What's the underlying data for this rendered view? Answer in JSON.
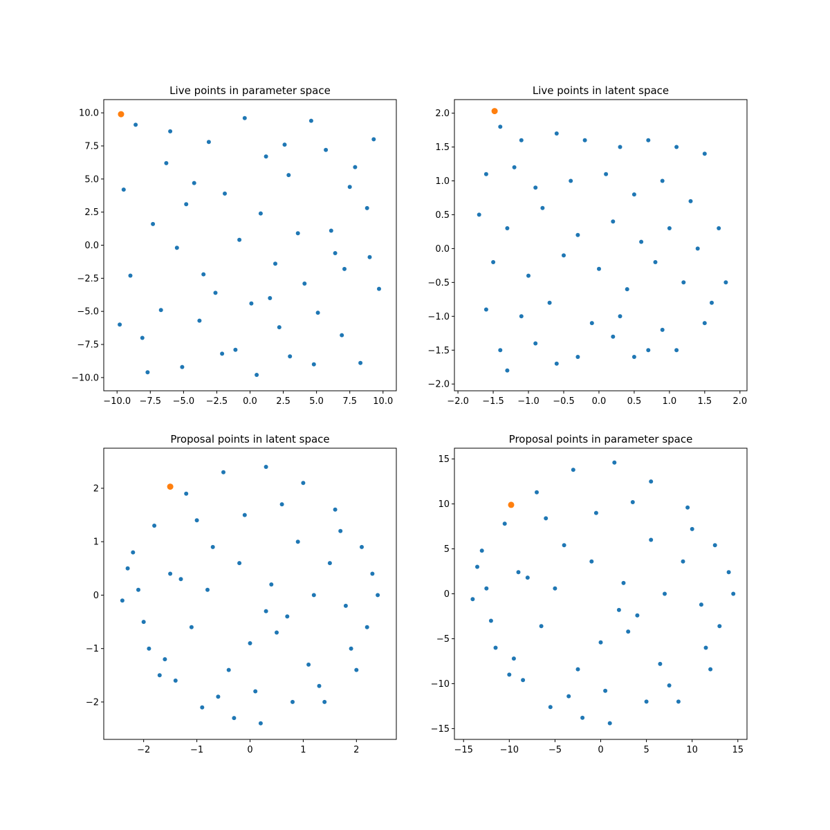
{
  "colors": {
    "series": "#1f77b4",
    "highlight": "#ff7f0e",
    "axes": "#000000",
    "background": "#ffffff"
  },
  "chart_data": [
    {
      "type": "scatter",
      "title": "Live points in parameter space",
      "xlabel": "",
      "ylabel": "",
      "xlim": [
        -11,
        11
      ],
      "ylim": [
        -11,
        11
      ],
      "xticks": [
        -10.0,
        -7.5,
        -5.0,
        -2.5,
        0.0,
        2.5,
        5.0,
        7.5,
        10.0
      ],
      "xtick_labels": [
        "−10.0",
        "−7.5",
        "−5.0",
        "−2.5",
        "0.0",
        "2.5",
        "5.0",
        "7.5",
        "10.0"
      ],
      "yticks": [
        -10.0,
        -7.5,
        -5.0,
        -2.5,
        0.0,
        2.5,
        5.0,
        7.5,
        10.0
      ],
      "ytick_labels": [
        "−10.0",
        "−7.5",
        "−5.0",
        "−2.5",
        "0.0",
        "2.5",
        "5.0",
        "7.5",
        "10.0"
      ],
      "grid": false,
      "legend": false,
      "series": [
        {
          "values_shape": "uniform square [-10,10] x [-10,10]",
          "x": [
            -8.6,
            -3.1,
            4.6,
            7.9,
            -6.0,
            1.2,
            -0.4,
            9.3,
            -9.5,
            2.9,
            5.7,
            -4.8,
            0.8,
            -7.3,
            3.6,
            8.8,
            -1.9,
            6.4,
            -5.5,
            1.9,
            -9.0,
            4.1,
            -2.6,
            7.1,
            0.1,
            -6.7,
            9.7,
            -3.8,
            2.2,
            5.1,
            -8.1,
            6.9,
            -1.1,
            3.0,
            -5.1,
            8.3,
            -7.7,
            0.5,
            4.8,
            -2.1,
            -9.8,
            1.5,
            6.1,
            -4.2,
            9.0,
            -0.8,
            2.6,
            -6.3,
            7.5,
            -3.5
          ],
          "y": [
            9.1,
            7.8,
            9.4,
            5.9,
            8.6,
            6.7,
            9.6,
            8.0,
            4.2,
            5.3,
            7.2,
            3.1,
            2.4,
            1.6,
            0.9,
            2.8,
            3.9,
            -0.6,
            -0.2,
            -1.4,
            -2.3,
            -2.9,
            -3.6,
            -1.8,
            -4.4,
            -4.9,
            -3.3,
            -5.7,
            -6.2,
            -5.1,
            -7.0,
            -6.8,
            -7.9,
            -8.4,
            -9.2,
            -8.9,
            -9.6,
            -9.8,
            -9.0,
            -8.2,
            -6.0,
            -4.0,
            1.1,
            4.7,
            -0.9,
            0.4,
            7.6,
            6.2,
            4.4,
            -2.2
          ],
          "color": "#1f77b4"
        },
        {
          "x": [
            -9.7
          ],
          "y": [
            9.9
          ],
          "color": "#ff7f0e"
        }
      ]
    },
    {
      "type": "scatter",
      "title": "Live points in latent space",
      "xlabel": "",
      "ylabel": "",
      "xlim": [
        -2.05,
        2.1
      ],
      "ylim": [
        -2.1,
        2.2
      ],
      "xticks": [
        -2.0,
        -1.5,
        -1.0,
        -0.5,
        0.0,
        0.5,
        1.0,
        1.5,
        2.0
      ],
      "xtick_labels": [
        "−2.0",
        "−1.5",
        "−1.0",
        "−0.5",
        "0.0",
        "0.5",
        "1.0",
        "1.5",
        "2.0"
      ],
      "yticks": [
        -2.0,
        -1.5,
        -1.0,
        -0.5,
        0.0,
        0.5,
        1.0,
        1.5,
        2.0
      ],
      "ytick_labels": [
        "−2.0",
        "−1.5",
        "−1.0",
        "−0.5",
        "0.0",
        "0.5",
        "1.0",
        "1.5",
        "2.0"
      ],
      "grid": false,
      "legend": false,
      "series": [
        {
          "x": [
            -1.4,
            -1.1,
            -0.6,
            -0.2,
            0.3,
            0.7,
            1.1,
            1.5,
            -1.6,
            -1.2,
            -0.9,
            -0.4,
            0.1,
            0.5,
            0.9,
            1.3,
            1.7,
            -1.7,
            -1.3,
            -0.8,
            -0.3,
            0.2,
            0.6,
            1.0,
            1.4,
            1.8,
            -1.5,
            -1.0,
            -0.5,
            0.0,
            0.4,
            0.8,
            1.2,
            1.6,
            -1.6,
            -1.1,
            -0.7,
            -0.1,
            0.3,
            0.9,
            1.5,
            -1.4,
            -0.9,
            -0.3,
            0.2,
            0.7,
            1.1,
            -1.3,
            -0.6,
            0.5
          ],
          "y": [
            1.8,
            1.6,
            1.7,
            1.6,
            1.5,
            1.6,
            1.5,
            1.4,
            1.1,
            1.2,
            0.9,
            1.0,
            1.1,
            0.8,
            1.0,
            0.7,
            0.3,
            0.5,
            0.3,
            0.6,
            0.2,
            0.4,
            0.1,
            0.3,
            0.0,
            -0.5,
            -0.2,
            -0.4,
            -0.1,
            -0.3,
            -0.6,
            -0.2,
            -0.5,
            -0.8,
            -0.9,
            -1.0,
            -0.8,
            -1.1,
            -1.0,
            -1.2,
            -1.1,
            -1.5,
            -1.4,
            -1.6,
            -1.3,
            -1.5,
            -1.5,
            -1.8,
            -1.7,
            -1.6
          ],
          "color": "#1f77b4"
        },
        {
          "x": [
            -1.48
          ],
          "y": [
            2.03
          ],
          "color": "#ff7f0e"
        }
      ]
    },
    {
      "type": "scatter",
      "title": "Proposal points in latent space",
      "xlabel": "",
      "ylabel": "",
      "xlim": [
        -2.75,
        2.75
      ],
      "ylim": [
        -2.7,
        2.75
      ],
      "xticks": [
        -2,
        -1,
        0,
        1,
        2
      ],
      "xtick_labels": [
        "−2",
        "−1",
        "0",
        "1",
        "2"
      ],
      "yticks": [
        -2,
        -1,
        0,
        1,
        2
      ],
      "ytick_labels": [
        "−2",
        "−1",
        "0",
        "1",
        "2"
      ],
      "grid": false,
      "legend": false,
      "series": [
        {
          "x": [
            -0.5,
            0.3,
            1.0,
            -1.2,
            1.6,
            -1.8,
            2.1,
            -2.3,
            2.4,
            -2.0,
            1.9,
            -1.4,
            0.8,
            -0.3,
            0.2,
            -0.9,
            1.3,
            -1.6,
            1.7,
            -2.2,
            2.2,
            -1.0,
            0.6,
            -0.1,
            0.9,
            -1.5,
            1.5,
            -0.7,
            0.4,
            -2.4,
            2.3,
            -1.9,
            1.1,
            -0.4,
            0.0,
            -1.1,
            1.8,
            -0.8,
            0.7,
            -1.3,
            1.2,
            -0.2,
            0.5,
            -2.1,
            2.0,
            -1.7,
            1.4,
            -0.6,
            0.1,
            0.3
          ],
          "y": [
            2.3,
            2.4,
            2.1,
            1.9,
            1.6,
            1.3,
            0.9,
            0.5,
            0.0,
            -0.5,
            -1.0,
            -1.6,
            -2.0,
            -2.3,
            -2.4,
            -2.1,
            -1.7,
            -1.2,
            1.2,
            0.8,
            -0.6,
            1.4,
            1.7,
            1.5,
            1.0,
            0.4,
            0.6,
            0.9,
            0.2,
            -0.1,
            0.4,
            -1.0,
            -1.3,
            -1.4,
            -0.9,
            -0.6,
            -0.2,
            0.1,
            -0.4,
            0.3,
            0.0,
            0.6,
            -0.7,
            0.1,
            -1.4,
            -1.5,
            -2.0,
            -1.9,
            -1.8,
            -0.3
          ],
          "color": "#1f77b4"
        },
        {
          "x": [
            -1.5
          ],
          "y": [
            2.03
          ],
          "color": "#ff7f0e"
        }
      ]
    },
    {
      "type": "scatter",
      "title": "Proposal points in parameter space",
      "xlabel": "",
      "ylabel": "",
      "xlim": [
        -16,
        16
      ],
      "ylim": [
        -16.2,
        16.2
      ],
      "xticks": [
        -15,
        -10,
        -5,
        0,
        5,
        10,
        15
      ],
      "xtick_labels": [
        "−15",
        "−10",
        "−5",
        "0",
        "5",
        "10",
        "15"
      ],
      "yticks": [
        -15,
        -10,
        -5,
        0,
        5,
        10,
        15
      ],
      "ytick_labels": [
        "−15",
        "−10",
        "−5",
        "0",
        "5",
        "10",
        "15"
      ],
      "grid": false,
      "legend": false,
      "series": [
        {
          "x": [
            -3.0,
            1.5,
            5.5,
            -7.0,
            9.5,
            -10.5,
            12.5,
            -13.5,
            14.5,
            -12.0,
            11.5,
            -8.5,
            5.0,
            -2.0,
            1.0,
            -5.5,
            7.5,
            -9.5,
            10.0,
            -13.0,
            13.0,
            -6.0,
            3.5,
            -0.5,
            5.5,
            -9.0,
            9.0,
            -4.0,
            2.5,
            -14.0,
            14.0,
            -11.5,
            6.5,
            -2.5,
            0.0,
            -6.5,
            11.0,
            -5.0,
            4.0,
            -8.0,
            7.0,
            -1.0,
            3.0,
            -12.5,
            12.0,
            -10.0,
            8.5,
            -3.5,
            0.5,
            2.0
          ],
          "y": [
            13.8,
            14.6,
            12.5,
            11.3,
            9.6,
            7.8,
            5.4,
            3.0,
            0.0,
            -3.0,
            -6.0,
            -9.6,
            -12.0,
            -13.8,
            -14.4,
            -12.6,
            -10.2,
            -7.2,
            7.2,
            4.8,
            -3.6,
            8.4,
            10.2,
            9.0,
            6.0,
            2.4,
            3.6,
            5.4,
            1.2,
            -0.6,
            2.4,
            -6.0,
            -7.8,
            -8.4,
            -5.4,
            -3.6,
            -1.2,
            0.6,
            -2.4,
            1.8,
            0.0,
            3.6,
            -4.2,
            0.6,
            -8.4,
            -9.0,
            -12.0,
            -11.4,
            -10.8,
            -1.8
          ],
          "color": "#1f77b4"
        },
        {
          "x": [
            -9.8
          ],
          "y": [
            9.9
          ],
          "color": "#ff7f0e"
        }
      ]
    }
  ]
}
